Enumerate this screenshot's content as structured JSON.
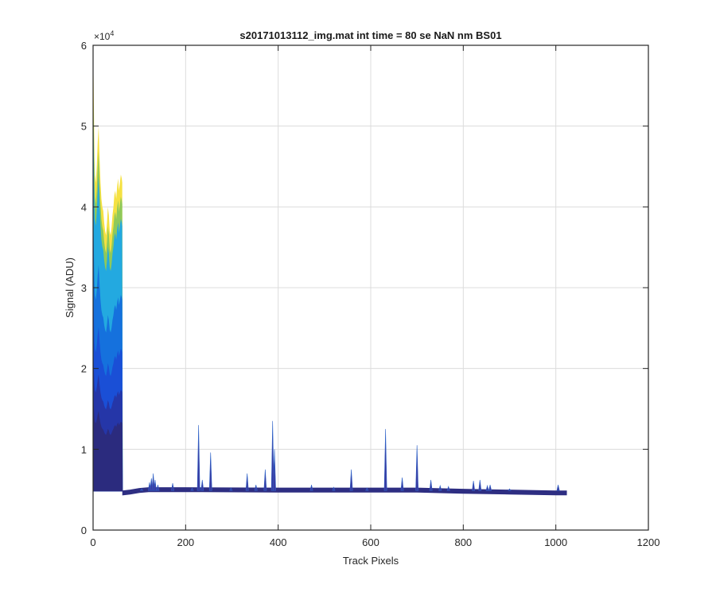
{
  "chart_data": {
    "type": "area",
    "title": "s20171013112_img.mat int time = 80 se  NaN nm BS01",
    "xlabel": "Track Pixels",
    "ylabel": "Signal (ADU)",
    "y_exponent_label": "×10",
    "y_exponent_power": "4",
    "xlim": [
      0,
      1200
    ],
    "ylim": [
      0,
      60000
    ],
    "x_ticks": [
      0,
      200,
      400,
      600,
      800,
      1000,
      1200
    ],
    "y_ticks": [
      0,
      10000,
      20000,
      30000,
      40000,
      50000,
      60000
    ],
    "x_tick_labels": [
      "0",
      "200",
      "400",
      "600",
      "800",
      "1000",
      "1200"
    ],
    "y_tick_labels": [
      "0",
      "1",
      "2",
      "3",
      "4",
      "5",
      "6"
    ],
    "grid": true,
    "baseline_value": 4800,
    "envelope": {
      "x": [
        0,
        1,
        2,
        3,
        4,
        6,
        8,
        10,
        12,
        14,
        16,
        18,
        20,
        22,
        24,
        26,
        28,
        30,
        32,
        34,
        36,
        38,
        40,
        42,
        44,
        46,
        48,
        50,
        52,
        54,
        56,
        58,
        60,
        62,
        63,
        64
      ],
      "y": [
        60000,
        56000,
        51000,
        46000,
        44000,
        43000,
        45000,
        48000,
        50000,
        46000,
        43000,
        41000,
        40000,
        39500,
        38000,
        37000,
        36500,
        38000,
        40000,
        39000,
        37000,
        36500,
        37500,
        39000,
        40000,
        41500,
        42000,
        41000,
        42500,
        43500,
        42000,
        43000,
        44000,
        43500,
        43000,
        4800
      ]
    },
    "series_colors": [
      "#f5e142",
      "#8fc95a",
      "#23a9e0",
      "#1571dd",
      "#1a4fd6",
      "#2536a8",
      "#2b2b7e"
    ],
    "spikes": [
      {
        "x": 105,
        "y": 5100
      },
      {
        "x": 122,
        "y": 5900
      },
      {
        "x": 126,
        "y": 6400
      },
      {
        "x": 130,
        "y": 7000
      },
      {
        "x": 134,
        "y": 6200
      },
      {
        "x": 140,
        "y": 5600
      },
      {
        "x": 172,
        "y": 5800
      },
      {
        "x": 214,
        "y": 5200
      },
      {
        "x": 228,
        "y": 13000
      },
      {
        "x": 236,
        "y": 6200
      },
      {
        "x": 254,
        "y": 9600
      },
      {
        "x": 298,
        "y": 5200
      },
      {
        "x": 333,
        "y": 7000
      },
      {
        "x": 352,
        "y": 5600
      },
      {
        "x": 372,
        "y": 7500
      },
      {
        "x": 388,
        "y": 13500
      },
      {
        "x": 392,
        "y": 10000
      },
      {
        "x": 472,
        "y": 5600
      },
      {
        "x": 520,
        "y": 5300
      },
      {
        "x": 558,
        "y": 7500
      },
      {
        "x": 592,
        "y": 5200
      },
      {
        "x": 632,
        "y": 12500
      },
      {
        "x": 668,
        "y": 6500
      },
      {
        "x": 700,
        "y": 10500
      },
      {
        "x": 730,
        "y": 6200
      },
      {
        "x": 750,
        "y": 5500
      },
      {
        "x": 768,
        "y": 5400
      },
      {
        "x": 822,
        "y": 6100
      },
      {
        "x": 836,
        "y": 6200
      },
      {
        "x": 852,
        "y": 5500
      },
      {
        "x": 858,
        "y": 5600
      },
      {
        "x": 900,
        "y": 5100
      },
      {
        "x": 1005,
        "y": 5600
      }
    ],
    "baseline_profile": {
      "x": [
        64,
        80,
        100,
        120,
        200,
        400,
        600,
        700,
        800,
        900,
        1000,
        1023
      ],
      "y": [
        4600,
        4700,
        4900,
        5000,
        5000,
        4950,
        4950,
        4950,
        4800,
        4700,
        4600,
        4600
      ]
    }
  }
}
